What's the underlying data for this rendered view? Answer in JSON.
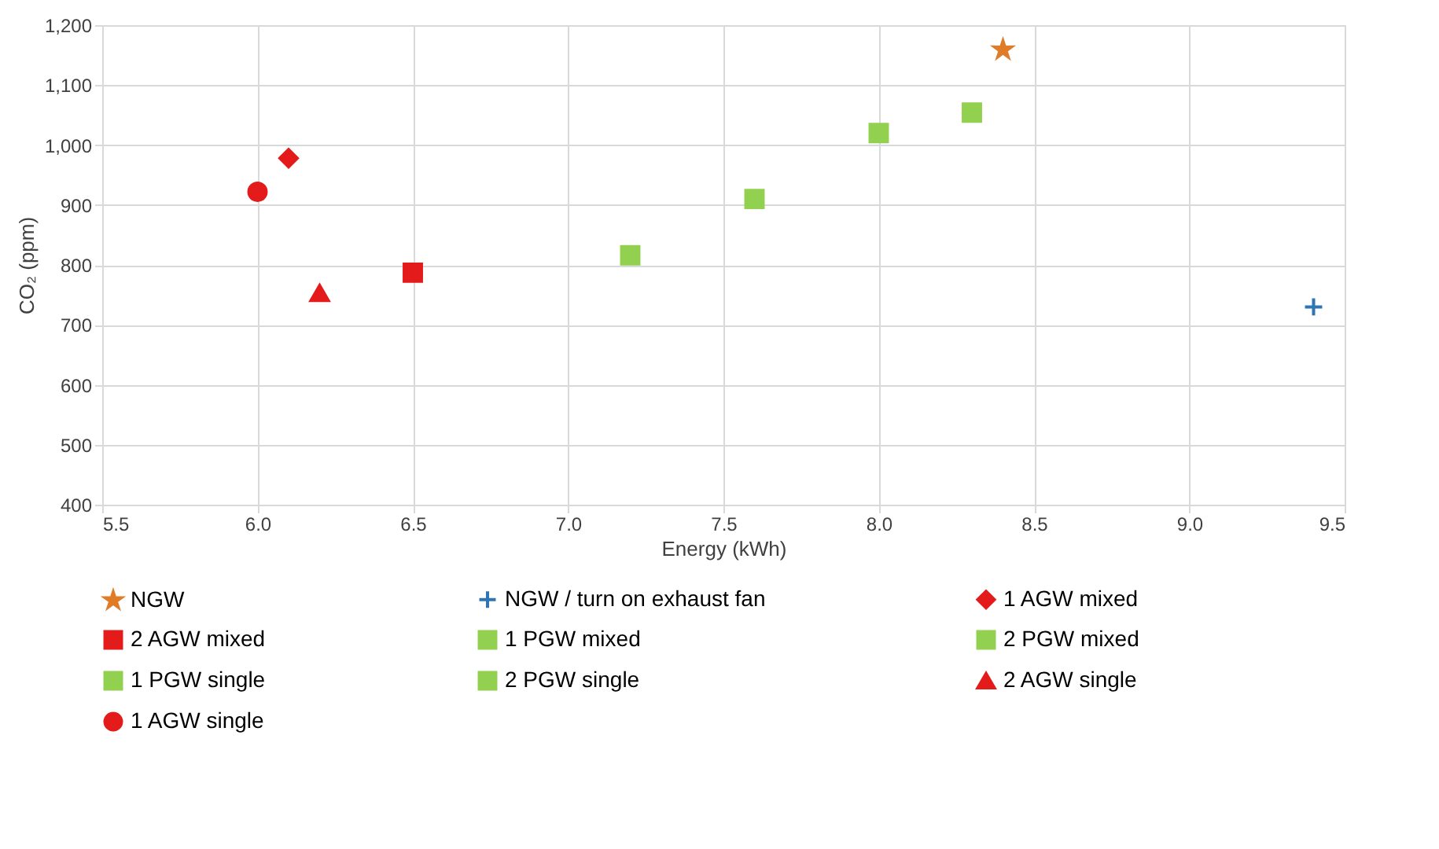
{
  "chart_data": {
    "type": "scatter",
    "xlabel": "Energy (kWh)",
    "ylabel": "CO₂ (ppm)",
    "xlim": [
      5.5,
      9.5
    ],
    "xticks": [
      {
        "value": 5.5,
        "label": "5.5"
      },
      {
        "value": 6,
        "label": "6.0"
      },
      {
        "value": 6.5,
        "label": "6.5"
      },
      {
        "value": 7,
        "label": "7.0"
      },
      {
        "value": 7.5,
        "label": "7.5"
      },
      {
        "value": 8,
        "label": "8.0"
      },
      {
        "value": 8.5,
        "label": "8.5"
      },
      {
        "value": 9,
        "label": "9.0"
      },
      {
        "value": 9.5,
        "label": "9.5"
      }
    ],
    "ylim": [
      400,
      1200
    ],
    "yticks": [
      400,
      500,
      600,
      700,
      800,
      900,
      {
        "value": 1000,
        "label": "1,000"
      },
      {
        "value": 1100,
        "label": "1,100"
      },
      {
        "value": 1200,
        "label": "1,200"
      }
    ],
    "grid": true,
    "legend": "bottom",
    "series": [
      {
        "name": "NGW",
        "color": "#e07b28",
        "marker": "star",
        "x": [
          8.4
        ],
        "values": [
          1159
        ]
      },
      {
        "name": "NGW / turn on exhaust fan",
        "color": "#2e75b6",
        "marker": "cross",
        "x": [
          9.4
        ],
        "values": [
          730
        ]
      },
      {
        "name": "1 AGW mixed",
        "color": "#e41b1b",
        "marker": "diamond",
        "x": [
          6.1
        ],
        "values": [
          978
        ]
      },
      {
        "name": "2 AGW mixed",
        "color": "#e41b1b",
        "marker": "square",
        "x": [
          6.5
        ],
        "values": [
          787
        ]
      },
      {
        "name": "1 PGW mixed",
        "color": "#92d050",
        "marker": "square",
        "x": [
          8.3
        ],
        "values": [
          1054
        ]
      },
      {
        "name": "2 PGW mixed",
        "color": "#92d050",
        "marker": "square",
        "x": [
          7.6
        ],
        "values": [
          910
        ]
      },
      {
        "name": "1 PGW single",
        "color": "#92d050",
        "marker": "square",
        "x": [
          8.0
        ],
        "values": [
          1020
        ]
      },
      {
        "name": "2 PGW single",
        "color": "#92d050",
        "marker": "square",
        "x": [
          7.2
        ],
        "values": [
          816
        ]
      },
      {
        "name": "2 AGW single",
        "color": "#e41b1b",
        "marker": "triangle",
        "x": [
          6.2
        ],
        "values": [
          753
        ]
      },
      {
        "name": "1 AGW single",
        "color": "#e41b1b",
        "marker": "circle",
        "x": [
          6.0
        ],
        "values": [
          922
        ]
      }
    ]
  }
}
